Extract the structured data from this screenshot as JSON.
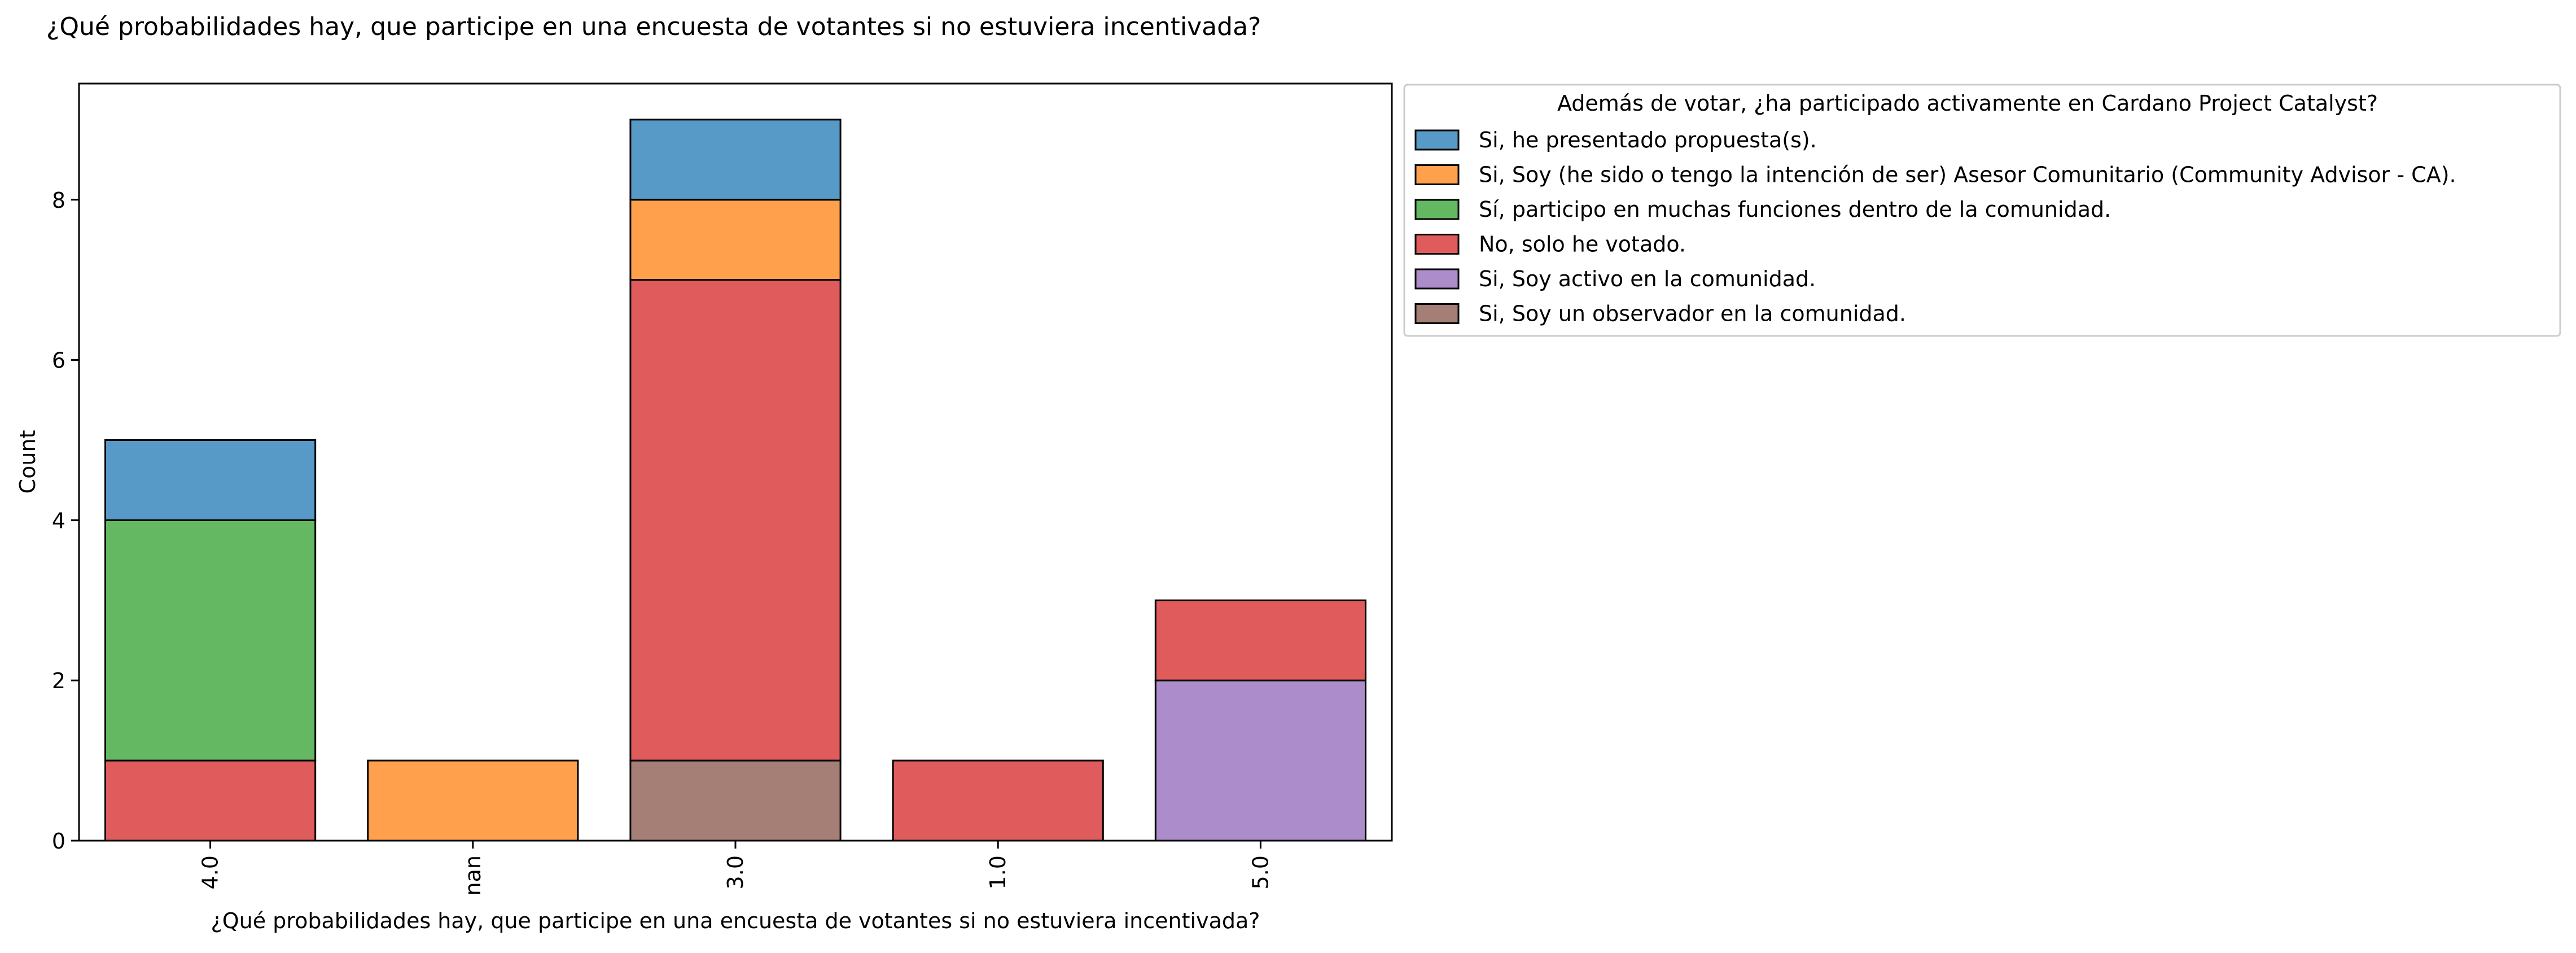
{
  "chart_data": {
    "type": "bar",
    "stacked": true,
    "title": "¿Qué probabilidades hay, que participe en una encuesta de votantes si no estuviera incentivada?",
    "xlabel": "¿Qué probabilidades hay, que participe en una encuesta de votantes si no estuviera incentivada?",
    "ylabel": "Count",
    "categories": [
      "4.0",
      "nan",
      "3.0",
      "1.0",
      "5.0"
    ],
    "ylim": [
      0,
      9.45
    ],
    "yticks": [
      0,
      2,
      4,
      6,
      8
    ],
    "grid": false,
    "legend_title": "Además de votar, ¿ha participado activamente en Cardano Project Catalyst?",
    "legend_position": "outside-right-top",
    "series": [
      {
        "name": "Si, he presentado propuesta(s).",
        "color": "#5799c7",
        "values": [
          1,
          0,
          1,
          0,
          0
        ]
      },
      {
        "name": "Si, Soy (he sido o tengo la intención de ser) Asesor Comunitario (Community Advisor - CA).",
        "color": "#ffa04c",
        "values": [
          0,
          1,
          1,
          0,
          0
        ]
      },
      {
        "name": "Sí, participo en muchas funciones dentro de la comunidad.",
        "color": "#64b861",
        "values": [
          3,
          0,
          0,
          0,
          0
        ]
      },
      {
        "name": "No, solo he votado.",
        "color": "#e05c5c",
        "values": [
          1,
          0,
          6,
          1,
          1
        ]
      },
      {
        "name": "Si, Soy activo en la comunidad.",
        "color": "#ad8ccb",
        "values": [
          0,
          0,
          0,
          0,
          2
        ]
      },
      {
        "name": "Si, Soy un observador en la comunidad.",
        "color": "#a57e76",
        "values": [
          0,
          0,
          1,
          0,
          0
        ]
      }
    ],
    "stack_order": [
      [
        "No, solo he votado.",
        "Sí, participo en muchas funciones dentro de la comunidad.",
        "Si, he presentado propuesta(s)."
      ],
      [
        "Si, Soy (he sido o tengo la intención de ser) Asesor Comunitario (Community Advisor - CA)."
      ],
      [
        "Si, Soy un observador en la comunidad.",
        "No, solo he votado.",
        "Si, Soy (he sido o tengo la intención de ser) Asesor Comunitario (Community Advisor - CA).",
        "Si, he presentado propuesta(s)."
      ],
      [
        "No, solo he votado."
      ],
      [
        "Si, Soy activo en la comunidad.",
        "No, solo he votado."
      ]
    ]
  }
}
